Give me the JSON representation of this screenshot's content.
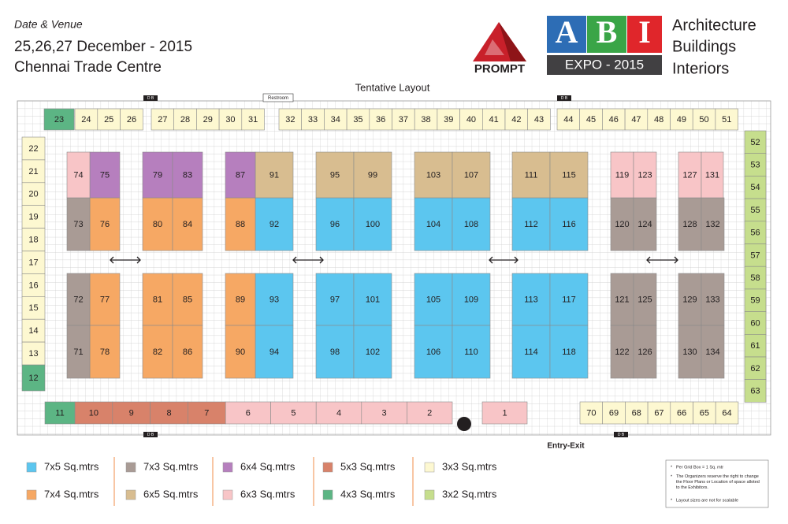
{
  "header": {
    "label": "Date & Venue",
    "dates": "25,26,27 December - 2015",
    "venue": "Chennai Trade Centre"
  },
  "logos": {
    "prompt": "PROMPT",
    "abi": [
      "A",
      "B",
      "I"
    ],
    "expo": "EXPO - 2015",
    "tagline": [
      "Architecture",
      "Buildings",
      "Interiors"
    ]
  },
  "layout": {
    "title": "Tentative Layout",
    "restroom": "Restroom",
    "db": [
      "D B",
      "D B",
      "D B",
      "D B"
    ],
    "entry": "Entry-Exit"
  },
  "legend": [
    {
      "label": "7x5 Sq.mtrs",
      "color": "#5cc6ef",
      "booths": [
        "92",
        "93",
        "94",
        "96",
        "97",
        "98",
        "100",
        "101",
        "102",
        "104",
        "105",
        "106",
        "108",
        "109",
        "110",
        "112",
        "113",
        "114",
        "116",
        "117",
        "118"
      ]
    },
    {
      "label": "7x4 Sq.mtrs",
      "color": "#f6a864",
      "booths": [
        "76",
        "77",
        "78",
        "80",
        "81",
        "82",
        "84",
        "85",
        "86",
        "88",
        "89",
        "90"
      ]
    },
    {
      "label": "7x3 Sq.mtrs",
      "color": "#a99b95",
      "booths": [
        "73",
        "72",
        "71",
        "120",
        "121",
        "122",
        "124",
        "125",
        "126",
        "128",
        "129",
        "130",
        "132",
        "133",
        "134"
      ]
    },
    {
      "label": "6x5 Sq.mtrs",
      "color": "#d8bd90",
      "booths": [
        "91",
        "95",
        "99",
        "103",
        "107",
        "111",
        "115"
      ]
    },
    {
      "label": "6x4 Sq.mtrs",
      "color": "#b67fbe",
      "booths": [
        "75",
        "79",
        "83",
        "87"
      ]
    },
    {
      "label": "6x3 Sq.mtrs",
      "color": "#f8c5c7",
      "booths": [
        "74",
        "119",
        "123",
        "127",
        "131",
        "6",
        "5",
        "4",
        "3",
        "2",
        "1"
      ]
    },
    {
      "label": "5x3 Sq.mtrs",
      "color": "#d8826a",
      "booths": [
        "10",
        "9",
        "8",
        "7"
      ]
    },
    {
      "label": "4x3 Sq.mtrs",
      "color": "#5cb584",
      "booths": [
        "23",
        "12",
        "11"
      ]
    },
    {
      "label": "3x3  Sq.mtrs",
      "color": "#fdf8d1",
      "booths": [
        "24",
        "25",
        "26",
        "27",
        "28",
        "29",
        "30",
        "31",
        "32",
        "33",
        "34",
        "35",
        "36",
        "37",
        "38",
        "39",
        "40",
        "41",
        "42",
        "43",
        "44",
        "45",
        "46",
        "47",
        "48",
        "49",
        "50",
        "51",
        "22",
        "21",
        "20",
        "19",
        "18",
        "17",
        "16",
        "15",
        "14",
        "13",
        "70",
        "69",
        "68",
        "67",
        "66",
        "65",
        "64"
      ]
    },
    {
      "label": "3x2 Sq.mtrs",
      "color": "#c6de8d",
      "booths": [
        "52",
        "53",
        "54",
        "55",
        "56",
        "57",
        "58",
        "59",
        "60",
        "61",
        "62",
        "63"
      ]
    }
  ],
  "notes": [
    "Per Grid Box = 1 Sq. mtr",
    "The Organizers reserve the right to change the Floor Plans or Location of space alloted to the Exhibitors.",
    "Layout sizes are not for scalable"
  ]
}
